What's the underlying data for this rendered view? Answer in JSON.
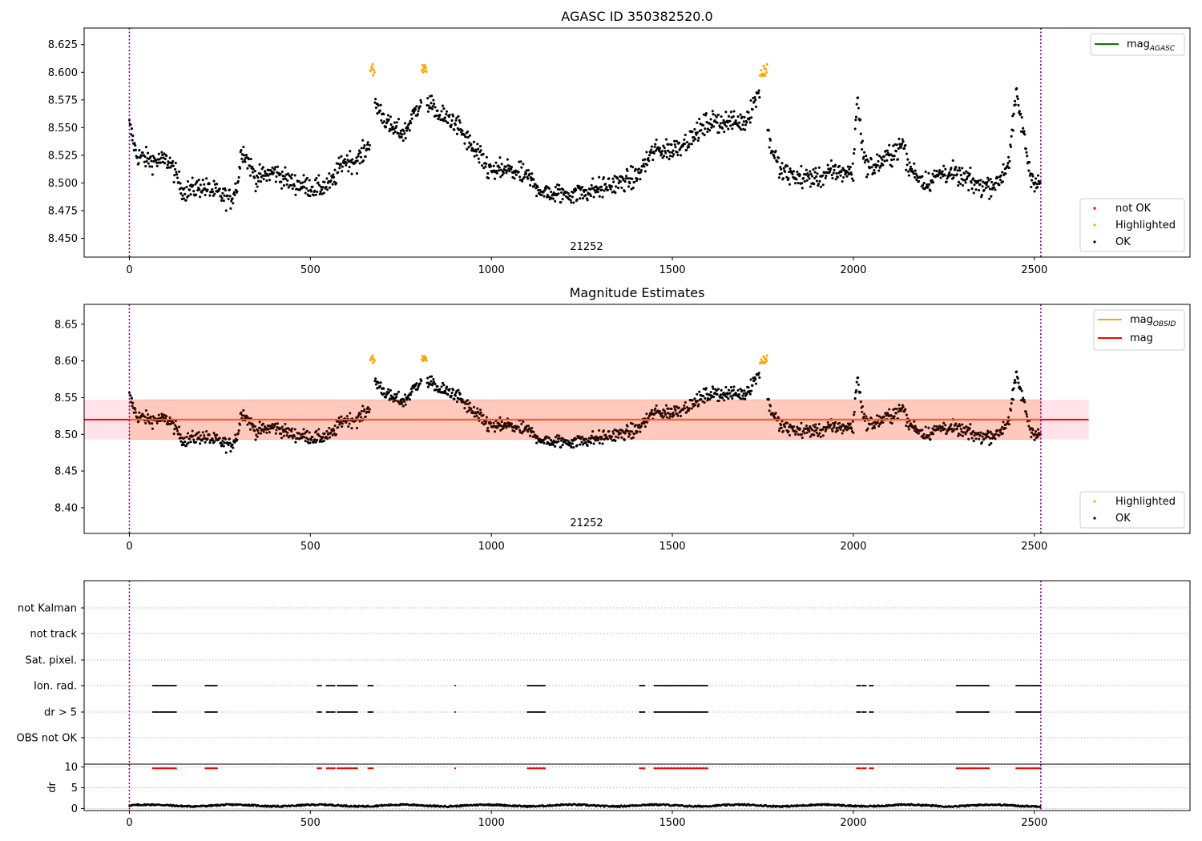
{
  "chart_data": [
    {
      "type": "scatter",
      "title": "AGASC ID 350382520.0",
      "annotation": "21252",
      "xlim": [
        -125,
        2930
      ],
      "ylim": [
        8.433,
        8.64
      ],
      "x_ticks": [
        0,
        500,
        1000,
        1500,
        2000,
        2500
      ],
      "x_tick_labels": [
        "0",
        "500",
        "1000",
        "1500",
        "2000",
        "2500"
      ],
      "y_ticks": [
        8.45,
        8.475,
        8.5,
        8.525,
        8.55,
        8.575,
        8.6,
        8.625
      ],
      "y_tick_labels": [
        "8.450",
        "8.475",
        "8.500",
        "8.525",
        "8.550",
        "8.575",
        "8.600",
        "8.625"
      ],
      "vlines": [
        0,
        2518
      ],
      "legend_lines": [
        {
          "label": "mag",
          "sub": "AGASC",
          "color": "#008000"
        }
      ],
      "legend_points": [
        {
          "label": "not OK",
          "color": "#ff0000"
        },
        {
          "label": "Highlighted",
          "color": "#ffa500"
        },
        {
          "label": "OK",
          "color": "#000000"
        }
      ]
    },
    {
      "type": "scatter",
      "title": "Magnitude Estimates",
      "annotation": "21252",
      "xlim": [
        -125,
        2930
      ],
      "ylim": [
        8.365,
        8.677
      ],
      "x_ticks": [
        0,
        500,
        1000,
        1500,
        2000,
        2500
      ],
      "x_tick_labels": [
        "0",
        "500",
        "1000",
        "1500",
        "2000",
        "2500"
      ],
      "y_ticks": [
        8.4,
        8.45,
        8.5,
        8.55,
        8.6,
        8.65
      ],
      "y_tick_labels": [
        "8.40",
        "8.45",
        "8.50",
        "8.55",
        "8.60",
        "8.65"
      ],
      "vlines": [
        0,
        2518
      ],
      "mean_mag": 8.52,
      "band": [
        8.493,
        8.547
      ],
      "band_x": [
        -125,
        2650
      ],
      "legend_lines": [
        {
          "label": "mag",
          "sub": "OBSID",
          "color": "#ffa500"
        },
        {
          "label": "mag",
          "sub": "",
          "color": "#ff0000"
        }
      ],
      "legend_points": [
        {
          "label": "Highlighted",
          "color": "#ffa500"
        },
        {
          "label": "OK",
          "color": "#000000"
        }
      ]
    },
    {
      "type": "scatter",
      "title": "",
      "xlim": [
        -125,
        2930
      ],
      "flag_labels": [
        "not Kalman",
        "not track",
        "Sat. pixel.",
        "Ion. rad.",
        "dr > 5",
        "OBS not OK"
      ],
      "flags": {
        "Ion. rad.": [
          [
            65,
            130
          ],
          [
            210,
            245
          ],
          [
            520,
            530
          ],
          [
            545,
            570
          ],
          [
            575,
            630
          ],
          [
            660,
            675
          ],
          [
            900,
            902
          ],
          [
            1100,
            1150
          ],
          [
            1410,
            1425
          ],
          [
            1450,
            1600
          ],
          [
            2010,
            2020
          ],
          [
            2025,
            2035
          ],
          [
            2045,
            2055
          ],
          [
            2285,
            2375
          ],
          [
            2450,
            2518
          ]
        ],
        "dr > 5": [
          [
            65,
            130
          ],
          [
            210,
            245
          ],
          [
            520,
            530
          ],
          [
            545,
            570
          ],
          [
            575,
            630
          ],
          [
            660,
            675
          ],
          [
            900,
            902
          ],
          [
            1100,
            1150
          ],
          [
            1410,
            1425
          ],
          [
            1450,
            1600
          ],
          [
            2010,
            2020
          ],
          [
            2025,
            2035
          ],
          [
            2045,
            2055
          ],
          [
            2285,
            2375
          ],
          [
            2450,
            2518
          ]
        ]
      },
      "dr_ylabel": "dr",
      "dr_ylim": [
        -0.5,
        10.7
      ],
      "dr_ticks": [
        0,
        5,
        10
      ],
      "dr_tick_labels": [
        "0",
        "5",
        "10"
      ],
      "x_ticks": [
        0,
        500,
        1000,
        1500,
        2000,
        2500
      ],
      "x_tick_labels": [
        "0",
        "500",
        "1000",
        "1500",
        "2000",
        "2500"
      ],
      "vlines": [
        0,
        2518
      ]
    }
  ]
}
